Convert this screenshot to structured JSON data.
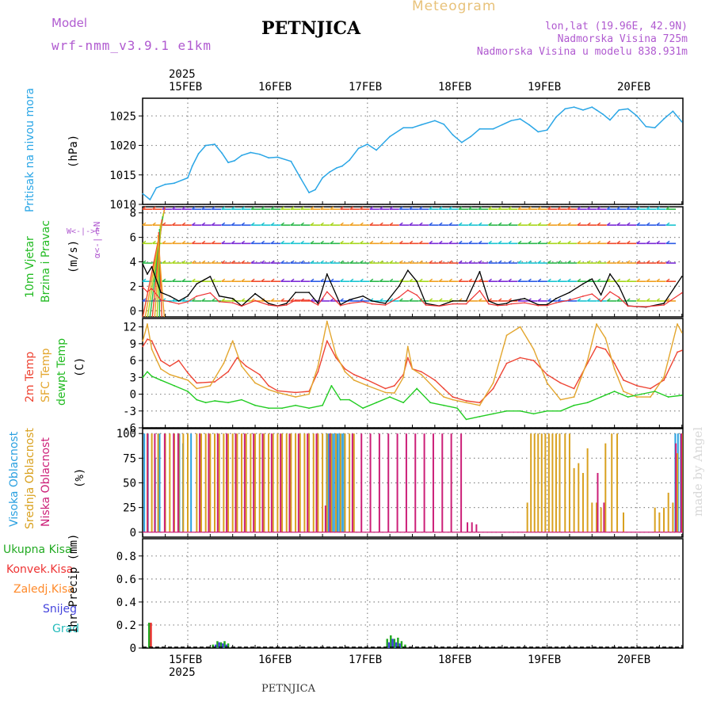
{
  "header": {
    "model_label": "Model",
    "model_name": "wrf-nmm_v3.9.1 e1km",
    "station": "PETNJICA",
    "product": "Meteogram",
    "lonlat": "lon,lat (19.96E, 42.9N)",
    "altitude": "Nadmorska Visina 725m",
    "model_altitude": "Nadmorska Visina u modelu 838.931m",
    "watermark": "made by Angel",
    "footer_station": "PETNJICA"
  },
  "colors": {
    "pressure": "#2aa6e6",
    "t2m": "#ee4433",
    "tsfc": "#e3a62e",
    "dewpt": "#22cc22",
    "high_cloud": "#2aa0e0",
    "mid_cloud": "#d9a11f",
    "low_cloud": "#cc1f78",
    "total_precip": "#22aa22",
    "conv_precip": "#ee3333",
    "frozen_precip": "#ff8a2a",
    "snow": "#4444dd",
    "hail": "#22bbbb",
    "label_purple": "#b05ad0"
  },
  "chart_data": [
    {
      "type": "line",
      "panel": "pressure",
      "top_year": "2025",
      "top_dates": [
        "15FEB",
        "16FEB",
        "17FEB",
        "18FEB",
        "19FEB",
        "20FEB"
      ],
      "ylabel": "(hPa)",
      "side_label": "Pritisak na nivou mora",
      "yticks": [
        "1010",
        "1015",
        "1020",
        "1025"
      ],
      "ylim": [
        1010,
        1028
      ],
      "grid": true,
      "x_days": [
        -0.5,
        -0.42,
        -0.35,
        -0.25,
        -0.15,
        0.0,
        0.05,
        0.12,
        0.2,
        0.3,
        0.38,
        0.45,
        0.52,
        0.6,
        0.7,
        0.8,
        0.9,
        1.0,
        1.15,
        1.25,
        1.35,
        1.42,
        1.5,
        1.58,
        1.66,
        1.72,
        1.8,
        1.9,
        2.0,
        2.1,
        2.25,
        2.4,
        2.5,
        2.6,
        2.75,
        2.85,
        2.95,
        3.05,
        3.15,
        3.25,
        3.4,
        3.5,
        3.6,
        3.7,
        3.8,
        3.9,
        4.0,
        4.1,
        4.2,
        4.3,
        4.4,
        4.5,
        4.55,
        4.62,
        4.7,
        4.8,
        4.9,
        5.0,
        5.1,
        5.2,
        5.3,
        5.4,
        5.5
      ],
      "values": [
        1011.8,
        1010.8,
        1012.8,
        1013.4,
        1013.6,
        1014.5,
        1016.5,
        1018.6,
        1020.0,
        1020.2,
        1018.7,
        1017.1,
        1017.4,
        1018.3,
        1018.8,
        1018.5,
        1017.9,
        1018.0,
        1017.3,
        1014.6,
        1012.0,
        1012.5,
        1014.5,
        1015.5,
        1016.2,
        1016.5,
        1017.5,
        1019.5,
        1020.2,
        1019.2,
        1021.5,
        1023.0,
        1023.0,
        1023.5,
        1024.2,
        1023.6,
        1021.8,
        1020.5,
        1021.5,
        1022.8,
        1022.8,
        1023.5,
        1024.2,
        1024.5,
        1023.5,
        1022.3,
        1022.6,
        1024.8,
        1026.2,
        1026.5,
        1026.0,
        1026.5,
        1026.0,
        1025.3,
        1024.3,
        1026.0,
        1026.2,
        1025.0,
        1023.2,
        1023.0,
        1024.5,
        1025.8,
        1024.0
      ]
    },
    {
      "type": "line",
      "panel": "wind",
      "ylabel": "(m/s)",
      "side_label_1": "10m Vjetar",
      "side_label_2": "Brzina i Pravac",
      "compass_ns": "α<-|->N",
      "compass_ew": "W<-|->E",
      "yticks": [
        "0",
        "2",
        "4",
        "6",
        "8"
      ],
      "ylim": [
        -0.5,
        8.5
      ],
      "grid": true,
      "series": [
        {
          "x_days": [
            -0.5,
            -0.45,
            -0.4,
            -0.3,
            -0.2,
            -0.1,
            0.0,
            0.1,
            0.25,
            0.35,
            0.5,
            0.6,
            0.75,
            0.9,
            1.0,
            1.1,
            1.2,
            1.35,
            1.45,
            1.55,
            1.7,
            1.8,
            1.95,
            2.05,
            2.2,
            2.35,
            2.45,
            2.55,
            2.65,
            2.8,
            2.95,
            3.1,
            3.25,
            3.35,
            3.45,
            3.55,
            3.6,
            3.75,
            3.9,
            4.0,
            4.1,
            4.25,
            4.4,
            4.5,
            4.6,
            4.7,
            4.8,
            4.9,
            5.1,
            5.3,
            5.5
          ],
          "values": [
            3.8,
            3.0,
            3.6,
            1.5,
            1.2,
            0.8,
            1.2,
            2.2,
            2.8,
            1.2,
            1.0,
            0.4,
            1.4,
            0.6,
            0.4,
            0.6,
            1.5,
            1.5,
            0.6,
            3.0,
            0.5,
            0.9,
            1.2,
            0.8,
            0.6,
            2.0,
            3.3,
            2.4,
            0.6,
            0.4,
            0.8,
            0.8,
            3.2,
            0.8,
            0.5,
            0.6,
            0.8,
            1.0,
            0.5,
            0.5,
            1.0,
            1.5,
            2.2,
            2.6,
            1.3,
            3.0,
            2.0,
            0.4,
            0.3,
            0.6,
            2.8
          ]
        }
      ]
    },
    {
      "type": "line",
      "panel": "temperature",
      "ylabel": "(C)",
      "side_label_1": "2m Temp",
      "side_label_2": "SFC Temp",
      "side_label_3": "dewpt Temp",
      "yticks": [
        "-6",
        "-3",
        "0",
        "3",
        "6",
        "9",
        "12"
      ],
      "ylim": [
        -6,
        13.5
      ],
      "grid": true,
      "series": [
        {
          "name": "2m Temp",
          "x_days": [
            -0.5,
            -0.45,
            -0.4,
            -0.3,
            -0.2,
            -0.1,
            0.0,
            0.1,
            0.3,
            0.45,
            0.55,
            0.65,
            0.8,
            0.9,
            1.0,
            1.2,
            1.35,
            1.45,
            1.55,
            1.65,
            1.75,
            1.85,
            2.0,
            2.2,
            2.3,
            2.4,
            2.45,
            2.5,
            2.6,
            2.75,
            2.85,
            2.95,
            3.1,
            3.25,
            3.4,
            3.55,
            3.7,
            3.85,
            4.0,
            4.15,
            4.3,
            4.45,
            4.55,
            4.65,
            4.75,
            4.85,
            5.0,
            5.15,
            5.3,
            5.45,
            5.5
          ],
          "values": [
            8.5,
            9.8,
            9.5,
            6.0,
            5.0,
            6.0,
            3.8,
            2.0,
            2.2,
            4.0,
            6.5,
            5.0,
            3.5,
            1.5,
            0.6,
            0.3,
            0.5,
            4.0,
            9.5,
            6.5,
            4.5,
            3.5,
            2.5,
            1.0,
            1.5,
            3.5,
            6.5,
            4.5,
            4.0,
            2.5,
            1.0,
            -0.5,
            -1.2,
            -1.5,
            1.0,
            5.5,
            6.5,
            6.0,
            3.5,
            2.0,
            1.0,
            5.5,
            8.5,
            8.0,
            5.5,
            2.5,
            1.5,
            1.0,
            2.5,
            7.5,
            7.8
          ]
        },
        {
          "name": "SFC Temp",
          "x_days": [
            -0.5,
            -0.45,
            -0.4,
            -0.3,
            -0.2,
            -0.1,
            0.0,
            0.1,
            0.25,
            0.4,
            0.5,
            0.6,
            0.75,
            0.9,
            1.0,
            1.2,
            1.35,
            1.45,
            1.55,
            1.65,
            1.75,
            1.85,
            2.0,
            2.2,
            2.3,
            2.4,
            2.45,
            2.5,
            2.6,
            2.75,
            2.85,
            2.95,
            3.1,
            3.25,
            3.4,
            3.55,
            3.7,
            3.85,
            4.0,
            4.15,
            4.3,
            4.45,
            4.55,
            4.65,
            4.75,
            4.85,
            5.0,
            5.15,
            5.3,
            5.45,
            5.5
          ],
          "values": [
            9.5,
            12.5,
            8.0,
            4.5,
            3.5,
            3.0,
            2.5,
            1.0,
            1.5,
            5.5,
            9.5,
            5.0,
            2.0,
            0.8,
            0.3,
            -0.5,
            0.0,
            5.0,
            13.0,
            7.0,
            4.0,
            2.5,
            1.5,
            0.3,
            0.2,
            3.0,
            8.5,
            4.5,
            3.5,
            1.0,
            -0.5,
            -1.0,
            -1.5,
            -2.0,
            2.0,
            10.5,
            12.0,
            8.0,
            2.0,
            -1.0,
            -0.5,
            6.0,
            12.5,
            10.0,
            4.5,
            0.5,
            -0.5,
            -0.5,
            3.0,
            12.5,
            11.0
          ]
        },
        {
          "name": "dewpt Temp",
          "x_days": [
            -0.5,
            -0.45,
            -0.4,
            -0.3,
            -0.15,
            0.0,
            0.1,
            0.2,
            0.3,
            0.45,
            0.6,
            0.75,
            0.9,
            1.05,
            1.2,
            1.35,
            1.5,
            1.6,
            1.7,
            1.8,
            1.95,
            2.1,
            2.25,
            2.4,
            2.55,
            2.7,
            2.85,
            3.0,
            3.1,
            3.25,
            3.4,
            3.55,
            3.7,
            3.85,
            4.0,
            4.15,
            4.3,
            4.45,
            4.6,
            4.75,
            4.9,
            5.05,
            5.2,
            5.35,
            5.5
          ],
          "values": [
            3.0,
            4.0,
            3.2,
            2.5,
            1.5,
            0.5,
            -1.0,
            -1.5,
            -1.2,
            -1.5,
            -1.0,
            -2.0,
            -2.5,
            -2.5,
            -2.0,
            -2.5,
            -2.0,
            1.5,
            -1.0,
            -1.0,
            -2.5,
            -1.5,
            -0.5,
            -1.5,
            1.0,
            -1.5,
            -2.0,
            -2.5,
            -4.5,
            -4.0,
            -3.5,
            -3.0,
            -3.0,
            -3.5,
            -3.0,
            -3.0,
            -2.0,
            -1.5,
            -0.5,
            0.5,
            -0.5,
            0.0,
            0.5,
            -0.5,
            -0.2
          ]
        }
      ]
    },
    {
      "type": "bar",
      "panel": "cloud",
      "ylabel": "(%)",
      "side_label_1": "Visoka Oblacnost",
      "side_label_2": "Srednja Oblacnost",
      "side_label_3": "Niska Oblacnost",
      "yticks": [
        "0",
        "25",
        "50",
        "75",
        "100"
      ],
      "ylim": [
        -5,
        105
      ],
      "grid": true,
      "series": [
        {
          "name": "Visoka Oblacnost",
          "x_days": [
            -0.47,
            -0.43,
            -0.35,
            -0.3,
            -0.08,
            -0.04,
            0.05,
            1.56,
            1.58,
            1.6,
            1.62,
            1.64,
            1.66,
            1.68,
            1.7,
            1.72,
            1.74,
            1.76,
            5.44,
            5.47,
            5.5
          ],
          "values": [
            100,
            100,
            75,
            100,
            100,
            90,
            100,
            100,
            100,
            100,
            100,
            100,
            100,
            100,
            100,
            100,
            100,
            100,
            100,
            100,
            100
          ]
        },
        {
          "name": "Srednja Oblacnost",
          "x_days": [
            -0.45,
            -0.4,
            -0.33,
            -0.25,
            -0.2,
            -0.15,
            -0.1,
            -0.05,
            0.0,
            0.1,
            0.15,
            0.2,
            0.25,
            0.3,
            0.35,
            0.4,
            0.45,
            0.5,
            0.55,
            0.6,
            0.65,
            0.7,
            0.75,
            0.8,
            0.85,
            0.9,
            0.95,
            1.0,
            1.05,
            1.1,
            1.15,
            1.2,
            1.25,
            1.3,
            1.35,
            1.4,
            1.45,
            1.5,
            1.55,
            1.6,
            1.65,
            1.7,
            1.75,
            1.8,
            1.85,
            3.78,
            3.82,
            3.86,
            3.9,
            3.94,
            3.98,
            4.02,
            4.06,
            4.1,
            4.14,
            4.2,
            4.25,
            4.3,
            4.35,
            4.4,
            4.45,
            4.5,
            4.55,
            4.6,
            4.65,
            4.72,
            4.78,
            4.85,
            5.2,
            5.25,
            5.3,
            5.35,
            5.4,
            5.45,
            5.5
          ],
          "values": [
            100,
            100,
            100,
            100,
            100,
            100,
            100,
            100,
            100,
            100,
            100,
            100,
            100,
            100,
            100,
            100,
            100,
            100,
            100,
            100,
            100,
            100,
            100,
            100,
            100,
            100,
            100,
            100,
            100,
            100,
            100,
            100,
            100,
            100,
            100,
            100,
            100,
            100,
            100,
            100,
            100,
            100,
            100,
            100,
            100,
            30,
            100,
            100,
            100,
            100,
            100,
            100,
            100,
            100,
            100,
            100,
            100,
            65,
            70,
            60,
            85,
            30,
            30,
            25,
            90,
            100,
            100,
            20,
            25,
            20,
            25,
            40,
            30,
            80,
            100
          ]
        },
        {
          "name": "Niska Oblacnost",
          "x_days": [
            -0.46,
            -0.38,
            -0.27,
            -0.17,
            -0.12,
            0.12,
            0.22,
            0.32,
            0.42,
            0.52,
            0.62,
            0.72,
            0.82,
            0.92,
            1.02,
            1.12,
            1.22,
            1.32,
            1.42,
            1.52,
            1.57,
            1.82,
            1.92,
            2.02,
            2.12,
            2.22,
            2.32,
            2.42,
            2.52,
            2.62,
            2.72,
            2.82,
            2.92,
            3.03,
            3.1,
            3.15,
            3.2,
            4.55,
            4.62,
            5.42,
            5.48
          ],
          "values": [
            100,
            100,
            100,
            100,
            100,
            100,
            100,
            100,
            100,
            100,
            100,
            100,
            100,
            100,
            100,
            100,
            100,
            100,
            100,
            27,
            100,
            100,
            100,
            100,
            100,
            100,
            100,
            100,
            100,
            100,
            100,
            100,
            100,
            100,
            10,
            10,
            8,
            60,
            30,
            90,
            100
          ]
        }
      ]
    },
    {
      "type": "bar",
      "panel": "precip",
      "ylabel": "1hr Precip (mm)",
      "legend": [
        "Ukupna Kisa",
        "Konvek.Kisa",
        "Zaledj.Kisa",
        "Snijeg",
        "Grad"
      ],
      "yticks": [
        "0",
        "0.2",
        "0.4",
        "0.6",
        "0.8"
      ],
      "ylim": [
        0,
        0.95
      ],
      "grid": true,
      "bottom_dates": [
        "15FEB",
        "16FEB",
        "17FEB",
        "18FEB",
        "19FEB",
        "20FEB"
      ],
      "bottom_year": "2025",
      "series": [
        {
          "name": "Ukupna Kisa",
          "x_days": [
            -0.43,
            0.28,
            0.33,
            0.37,
            0.41,
            0.45,
            2.22,
            2.26,
            2.3,
            2.34,
            2.38,
            2.42
          ],
          "values": [
            0.22,
            0.03,
            0.06,
            0.05,
            0.06,
            0.04,
            0.08,
            0.11,
            0.08,
            0.09,
            0.06,
            0.03
          ]
        },
        {
          "name": "Konvek.Kisa",
          "x_days": [
            -0.41
          ],
          "values": [
            0.22
          ]
        },
        {
          "name": "Snijeg",
          "x_days": [
            0.31,
            0.35,
            0.39,
            0.43,
            2.24,
            2.28,
            2.32,
            2.36
          ],
          "values": [
            0.03,
            0.05,
            0.04,
            0.03,
            0.05,
            0.08,
            0.05,
            0.04
          ]
        }
      ]
    }
  ]
}
